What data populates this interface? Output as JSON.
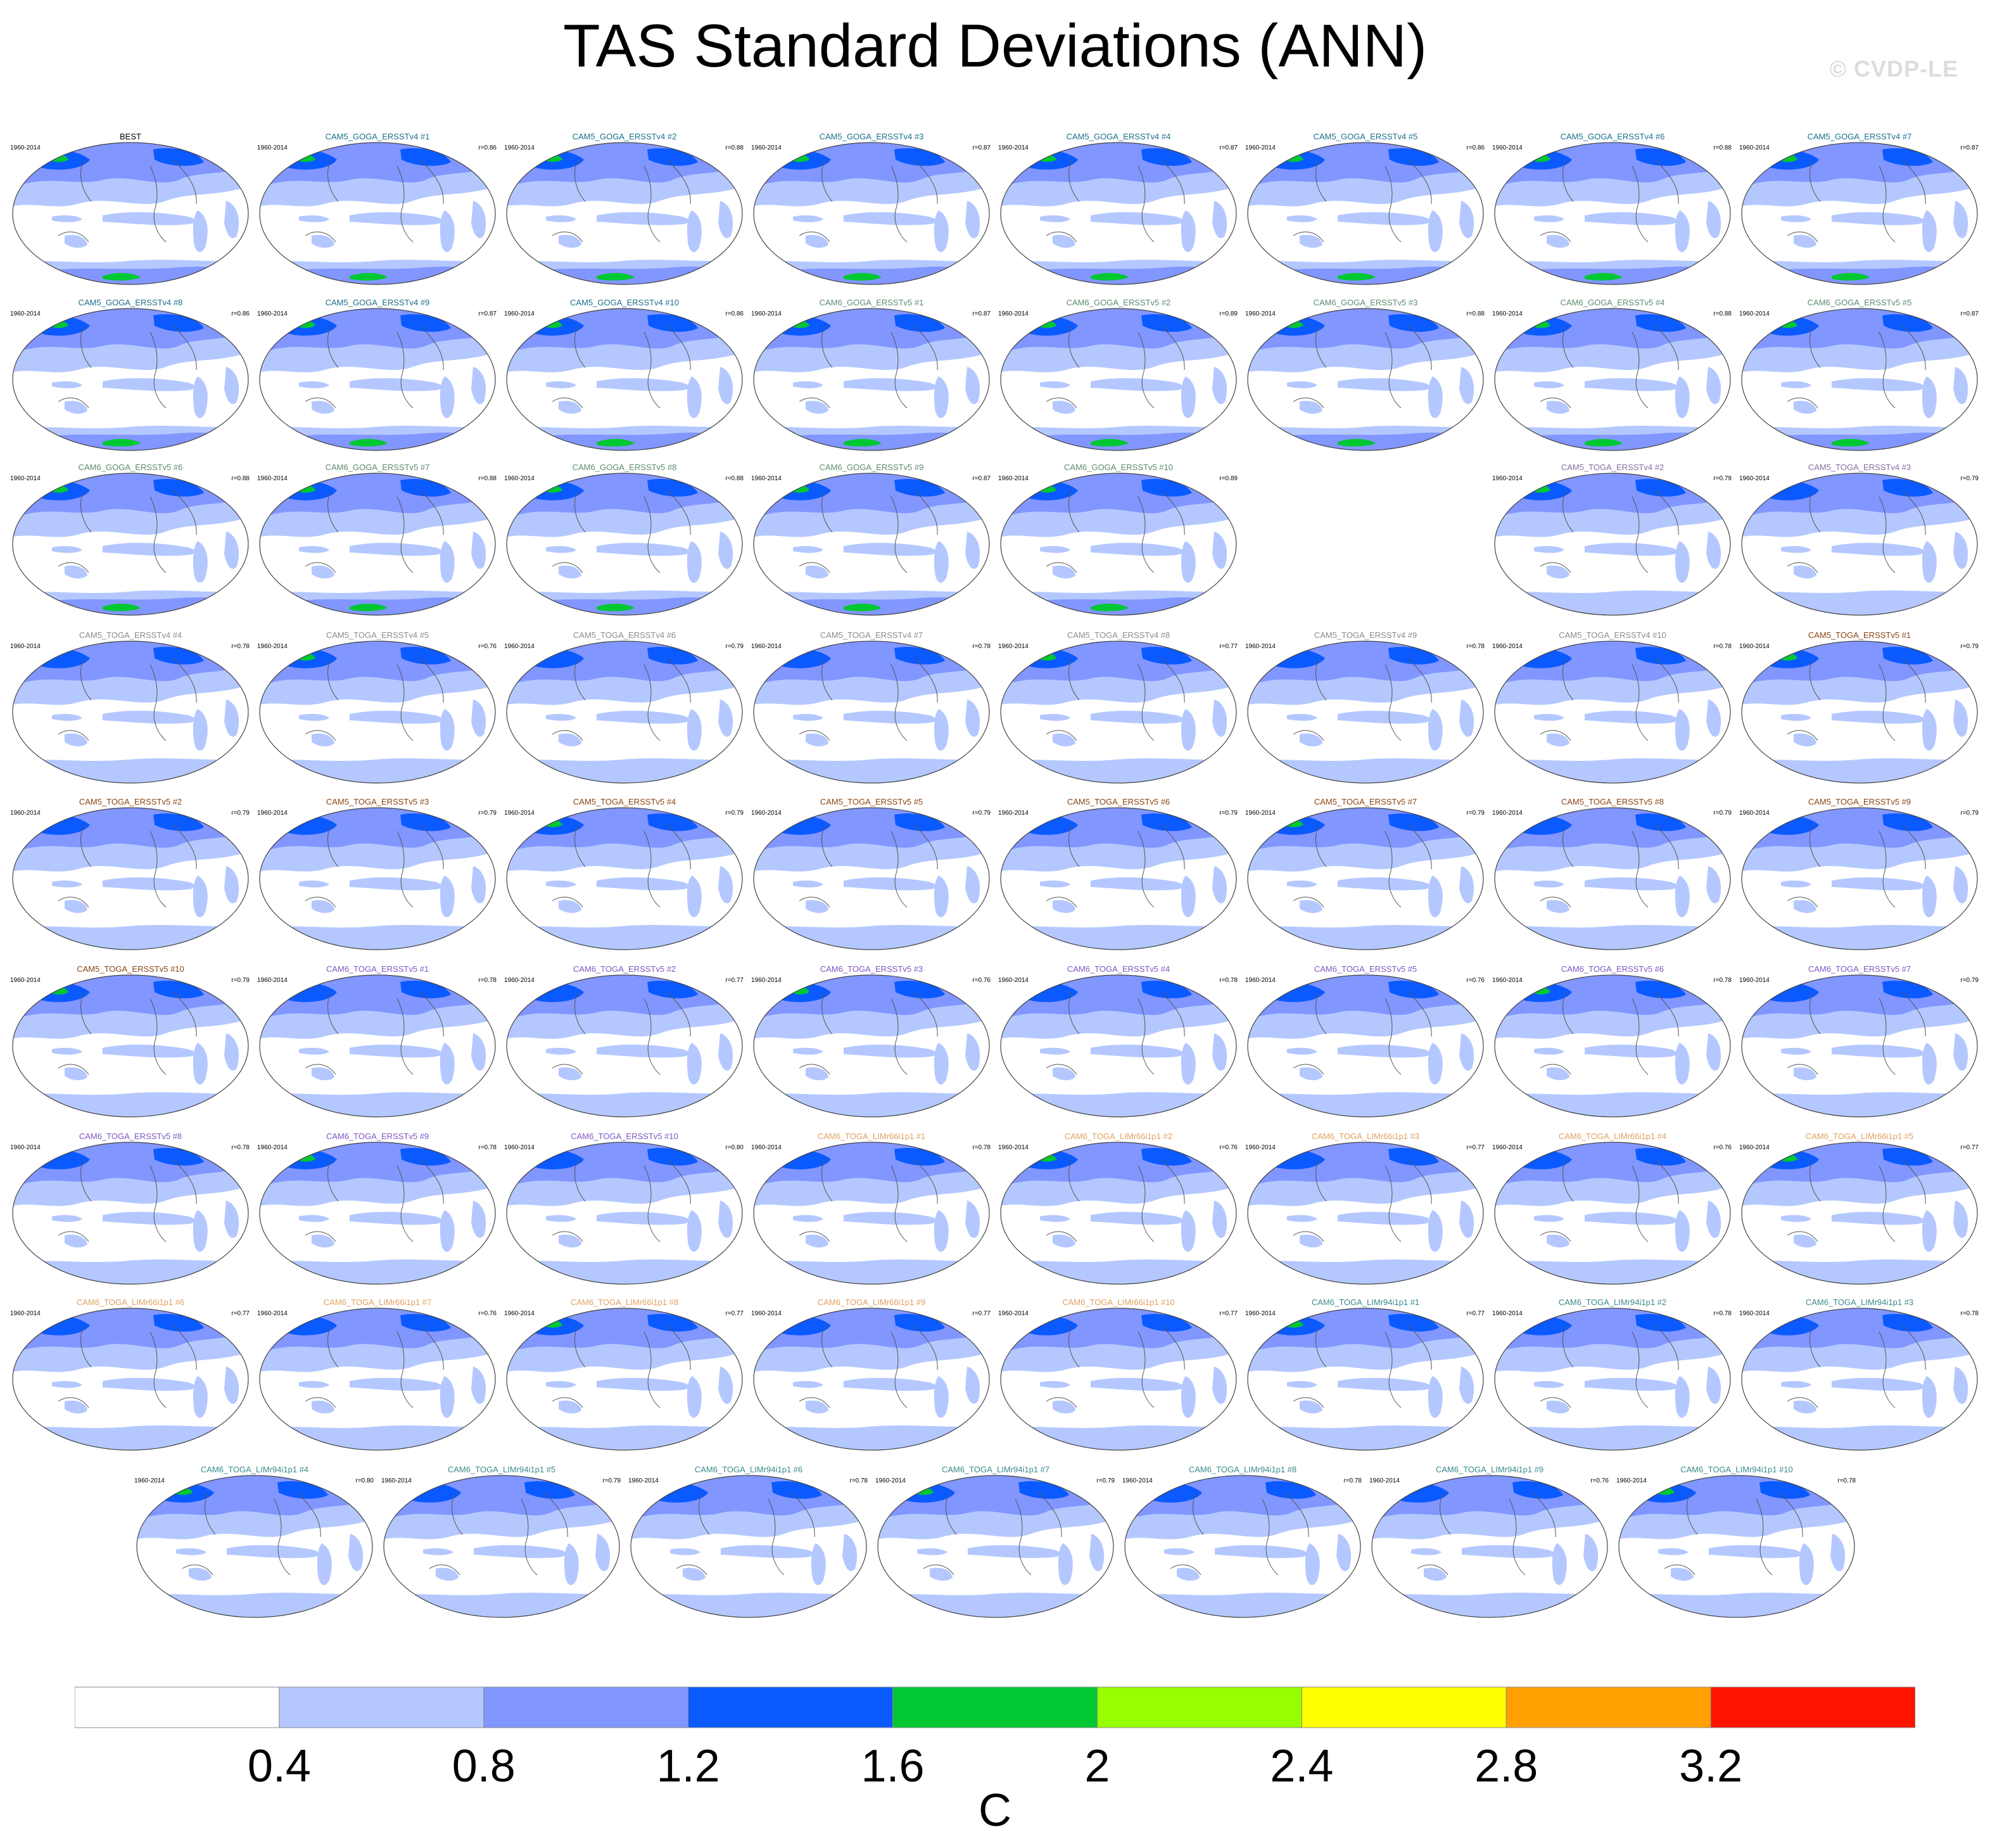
{
  "title": "TAS Standard Deviations (ANN)",
  "watermark": "© CVDP-LE",
  "units": "C",
  "colorbar": {
    "colors": [
      "#ffffff",
      "#b4c8ff",
      "#8296ff",
      "#0a5aff",
      "#00c832",
      "#96ff00",
      "#ffff00",
      "#ffa000",
      "#ff1400"
    ],
    "labels": [
      "0.4",
      "0.8",
      "1.2",
      "1.6",
      "2",
      "2.4",
      "2.8",
      "3.2"
    ]
  },
  "map_colors": {
    "ocean": "#ffffff",
    "level1": "#b4c8ff",
    "level2": "#8296ff",
    "level3": "#0a5aff",
    "level4": "#00c832",
    "coast": "#555555"
  },
  "panels": [
    {
      "title": "BEST",
      "period": "1960-2014",
      "corr": "",
      "color": "#000000"
    },
    {
      "title": "CAM5_GOGA_ERSSTv4 #1",
      "period": "1960-2014",
      "corr": "r=0.86",
      "color": "#1b6f8c"
    },
    {
      "title": "CAM5_GOGA_ERSSTv4 #2",
      "period": "1960-2014",
      "corr": "r=0.88",
      "color": "#1b6f8c"
    },
    {
      "title": "CAM5_GOGA_ERSSTv4 #3",
      "period": "1960-2014",
      "corr": "r=0.87",
      "color": "#1b6f8c"
    },
    {
      "title": "CAM5_GOGA_ERSSTv4 #4",
      "period": "1960-2014",
      "corr": "r=0.87",
      "color": "#1b6f8c"
    },
    {
      "title": "CAM5_GOGA_ERSSTv4 #5",
      "period": "1960-2014",
      "corr": "r=0.86",
      "color": "#1b6f8c"
    },
    {
      "title": "CAM5_GOGA_ERSSTv4 #6",
      "period": "1960-2014",
      "corr": "r=0.88",
      "color": "#1b6f8c"
    },
    {
      "title": "CAM5_GOGA_ERSSTv4 #7",
      "period": "1960-2014",
      "corr": "r=0.87",
      "color": "#1b6f8c"
    },
    {
      "title": "CAM5_GOGA_ERSSTv4 #8",
      "period": "1960-2014",
      "corr": "r=0.86",
      "color": "#1b6f8c"
    },
    {
      "title": "CAM5_GOGA_ERSSTv4 #9",
      "period": "1960-2014",
      "corr": "r=0.87",
      "color": "#1b6f8c"
    },
    {
      "title": "CAM5_GOGA_ERSSTv4 #10",
      "period": "1960-2014",
      "corr": "r=0.86",
      "color": "#1b6f8c"
    },
    {
      "title": "CAM6_GOGA_ERSSTv5 #1",
      "period": "1960-2014",
      "corr": "r=0.87",
      "color": "#5b8c6e"
    },
    {
      "title": "CAM6_GOGA_ERSSTv5 #2",
      "period": "1960-2014",
      "corr": "r=0.89",
      "color": "#5b8c6e"
    },
    {
      "title": "CAM6_GOGA_ERSSTv5 #3",
      "period": "1960-2014",
      "corr": "r=0.88",
      "color": "#5b8c6e"
    },
    {
      "title": "CAM6_GOGA_ERSSTv5 #4",
      "period": "1960-2014",
      "corr": "r=0.88",
      "color": "#5b8c6e"
    },
    {
      "title": "CAM6_GOGA_ERSSTv5 #5",
      "period": "1960-2014",
      "corr": "r=0.87",
      "color": "#5b8c6e"
    },
    {
      "title": "CAM6_GOGA_ERSSTv5 #6",
      "period": "1960-2014",
      "corr": "r=0.88",
      "color": "#5b8c6e"
    },
    {
      "title": "CAM6_GOGA_ERSSTv5 #7",
      "period": "1960-2014",
      "corr": "r=0.88",
      "color": "#5b8c6e"
    },
    {
      "title": "CAM6_GOGA_ERSSTv5 #8",
      "period": "1960-2014",
      "corr": "r=0.88",
      "color": "#5b8c6e"
    },
    {
      "title": "CAM6_GOGA_ERSSTv5 #9",
      "period": "1960-2014",
      "corr": "r=0.87",
      "color": "#5b8c6e"
    },
    {
      "title": "CAM6_GOGA_ERSSTv5 #10",
      "period": "1960-2014",
      "corr": "r=0.89",
      "color": "#5b8c6e"
    },
    {
      "title": "CAM5_TOGA_ERSSTv4 #2",
      "period": "1960-2014",
      "corr": "r=0.79",
      "color": "#8c6ea0"
    },
    {
      "title": "CAM5_TOGA_ERSSTv4 #3",
      "period": "1960-2014",
      "corr": "r=0.79",
      "color": "#8c6ea0"
    },
    {
      "title": "CAM5_TOGA_ERSSTv4 #4",
      "period": "1960-2014",
      "corr": "r=0.78",
      "color": "#8c8c8c"
    },
    {
      "title": "CAM5_TOGA_ERSSTv4 #5",
      "period": "1960-2014",
      "corr": "r=0.76",
      "color": "#8c8c8c"
    },
    {
      "title": "CAM5_TOGA_ERSSTv4 #6",
      "period": "1960-2014",
      "corr": "r=0.79",
      "color": "#8c8c8c"
    },
    {
      "title": "CAM5_TOGA_ERSSTv4 #7",
      "period": "1960-2014",
      "corr": "r=0.78",
      "color": "#8c8c8c"
    },
    {
      "title": "CAM5_TOGA_ERSSTv4 #8",
      "period": "1960-2014",
      "corr": "r=0.77",
      "color": "#8c8c8c"
    },
    {
      "title": "CAM5_TOGA_ERSSTv4 #9",
      "period": "1960-2014",
      "corr": "r=0.78",
      "color": "#8c8c8c"
    },
    {
      "title": "CAM5_TOGA_ERSSTv4 #10",
      "period": "1960-2014",
      "corr": "r=0.78",
      "color": "#8c8c8c"
    },
    {
      "title": "CAM5_TOGA_ERSSTv5 #1",
      "period": "1960-2014",
      "corr": "r=0.79",
      "color": "#8b4513"
    },
    {
      "title": "CAM5_TOGA_ERSSTv5 #2",
      "period": "1960-2014",
      "corr": "r=0.79",
      "color": "#8b4513"
    },
    {
      "title": "CAM5_TOGA_ERSSTv5 #3",
      "period": "1960-2014",
      "corr": "r=0.79",
      "color": "#8b4513"
    },
    {
      "title": "CAM5_TOGA_ERSSTv5 #4",
      "period": "1960-2014",
      "corr": "r=0.79",
      "color": "#8b4513"
    },
    {
      "title": "CAM5_TOGA_ERSSTv5 #5",
      "period": "1960-2014",
      "corr": "r=0.79",
      "color": "#8b4513"
    },
    {
      "title": "CAM5_TOGA_ERSSTv5 #6",
      "period": "1960-2014",
      "corr": "r=0.79",
      "color": "#8b4513"
    },
    {
      "title": "CAM5_TOGA_ERSSTv5 #7",
      "period": "1960-2014",
      "corr": "r=0.79",
      "color": "#8b4513"
    },
    {
      "title": "CAM5_TOGA_ERSSTv5 #8",
      "period": "1960-2014",
      "corr": "r=0.79",
      "color": "#8b4513"
    },
    {
      "title": "CAM5_TOGA_ERSSTv5 #9",
      "period": "1960-2014",
      "corr": "r=0.79",
      "color": "#8b4513"
    },
    {
      "title": "CAM5_TOGA_ERSSTv5 #10",
      "period": "1960-2014",
      "corr": "r=0.79",
      "color": "#8b4513"
    },
    {
      "title": "CAM6_TOGA_ERSSTv5 #1",
      "period": "1960-2014",
      "corr": "r=0.78",
      "color": "#7e57c2"
    },
    {
      "title": "CAM6_TOGA_ERSSTv5 #2",
      "period": "1960-2014",
      "corr": "r=0.77",
      "color": "#7e57c2"
    },
    {
      "title": "CAM6_TOGA_ERSSTv5 #3",
      "period": "1960-2014",
      "corr": "r=0.76",
      "color": "#7e57c2"
    },
    {
      "title": "CAM6_TOGA_ERSSTv5 #4",
      "period": "1960-2014",
      "corr": "r=0.78",
      "color": "#7e57c2"
    },
    {
      "title": "CAM6_TOGA_ERSSTv5 #5",
      "period": "1960-2014",
      "corr": "r=0.76",
      "color": "#7e57c2"
    },
    {
      "title": "CAM6_TOGA_ERSSTv5 #6",
      "period": "1960-2014",
      "corr": "r=0.78",
      "color": "#7e57c2"
    },
    {
      "title": "CAM6_TOGA_ERSSTv5 #7",
      "period": "1960-2014",
      "corr": "r=0.79",
      "color": "#7e57c2"
    },
    {
      "title": "CAM6_TOGA_ERSSTv5 #8",
      "period": "1960-2014",
      "corr": "r=0.78",
      "color": "#7e57c2"
    },
    {
      "title": "CAM6_TOGA_ERSSTv5 #9",
      "period": "1960-2014",
      "corr": "r=0.78",
      "color": "#7e57c2"
    },
    {
      "title": "CAM6_TOGA_ERSSTv5 #10",
      "period": "1960-2014",
      "corr": "r=0.80",
      "color": "#7e57c2"
    },
    {
      "title": "CAM6_TOGA_LIMr66i1p1 #1",
      "period": "1960-2014",
      "corr": "r=0.78",
      "color": "#e0a060"
    },
    {
      "title": "CAM6_TOGA_LIMr66i1p1 #2",
      "period": "1960-2014",
      "corr": "r=0.76",
      "color": "#e0a060"
    },
    {
      "title": "CAM6_TOGA_LIMr66i1p1 #3",
      "period": "1960-2014",
      "corr": "r=0.77",
      "color": "#e0a060"
    },
    {
      "title": "CAM6_TOGA_LIMr66i1p1 #4",
      "period": "1960-2014",
      "corr": "r=0.76",
      "color": "#e0a060"
    },
    {
      "title": "CAM6_TOGA_LIMr66i1p1 #5",
      "period": "1960-2014",
      "corr": "r=0.77",
      "color": "#e0a060"
    },
    {
      "title": "CAM6_TOGA_LIMr66i1p1 #6",
      "period": "1960-2014",
      "corr": "r=0.77",
      "color": "#e0a060"
    },
    {
      "title": "CAM6_TOGA_LIMr66i1p1 #7",
      "period": "1960-2014",
      "corr": "r=0.76",
      "color": "#e0a060"
    },
    {
      "title": "CAM6_TOGA_LIMr66i1p1 #8",
      "period": "1960-2014",
      "corr": "r=0.77",
      "color": "#e0a060"
    },
    {
      "title": "CAM6_TOGA_LIMr66i1p1 #9",
      "period": "1960-2014",
      "corr": "r=0.77",
      "color": "#e0a060"
    },
    {
      "title": "CAM6_TOGA_LIMr66i1p1 #10",
      "period": "1960-2014",
      "corr": "r=0.77",
      "color": "#e0a060"
    },
    {
      "title": "CAM6_TOGA_LIMr94i1p1 #1",
      "period": "1960-2014",
      "corr": "r=0.77",
      "color": "#3a8a8c"
    },
    {
      "title": "CAM6_TOGA_LIMr94i1p1 #2",
      "period": "1960-2014",
      "corr": "r=0.78",
      "color": "#3a8a8c"
    },
    {
      "title": "CAM6_TOGA_LIMr94i1p1 #3",
      "period": "1960-2014",
      "corr": "r=0.78",
      "color": "#3a8a8c"
    },
    {
      "title": "CAM6_TOGA_LIMr94i1p1 #4",
      "period": "1960-2014",
      "corr": "r=0.80",
      "color": "#3a8a8c"
    },
    {
      "title": "CAM6_TOGA_LIMr94i1p1 #5",
      "period": "1960-2014",
      "corr": "r=0.79",
      "color": "#3a8a8c"
    },
    {
      "title": "CAM6_TOGA_LIMr94i1p1 #6",
      "period": "1960-2014",
      "corr": "r=0.78",
      "color": "#3a8a8c"
    },
    {
      "title": "CAM6_TOGA_LIMr94i1p1 #7",
      "period": "1960-2014",
      "corr": "r=0.79",
      "color": "#3a8a8c"
    },
    {
      "title": "CAM6_TOGA_LIMr94i1p1 #8",
      "period": "1960-2014",
      "corr": "r=0.78",
      "color": "#3a8a8c"
    },
    {
      "title": "CAM6_TOGA_LIMr94i1p1 #9",
      "period": "1960-2014",
      "corr": "r=0.76",
      "color": "#3a8a8c"
    },
    {
      "title": "CAM6_TOGA_LIMr94i1p1 #10",
      "period": "1960-2014",
      "corr": "r=0.78",
      "color": "#3a8a8c"
    }
  ]
}
